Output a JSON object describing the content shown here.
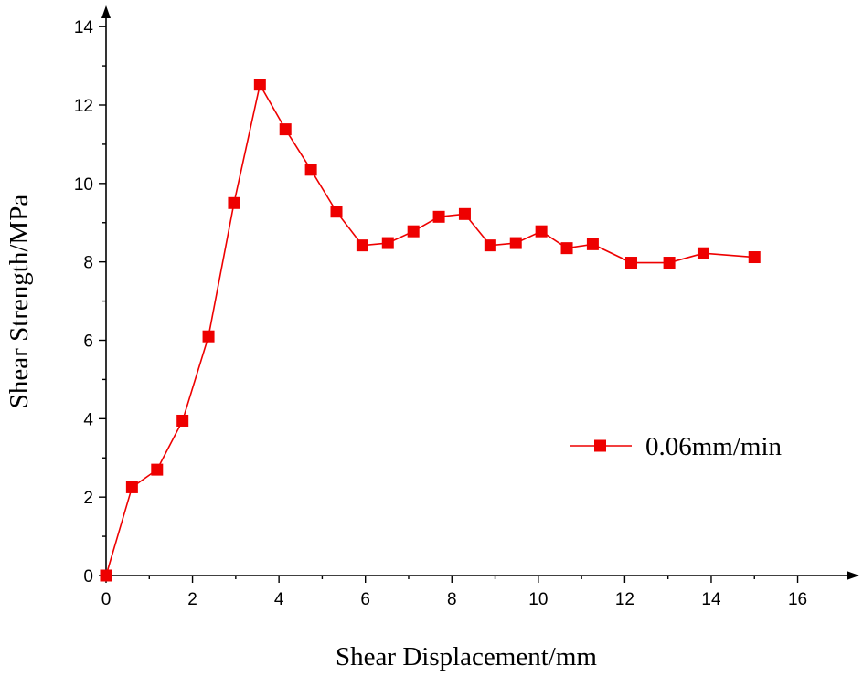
{
  "chart_data": {
    "type": "line",
    "xlabel": "Shear Displacement/mm",
    "ylabel": "Shear Strength/MPa",
    "xlim": [
      0,
      17.3
    ],
    "ylim": [
      0,
      14.4
    ],
    "xticks": [
      0,
      2,
      4,
      6,
      8,
      10,
      12,
      14,
      16
    ],
    "xtick_labels": [
      "0",
      "2",
      "4",
      "6",
      "8",
      "10",
      "12",
      "14",
      "16"
    ],
    "yticks": [
      0,
      2,
      4,
      6,
      8,
      10,
      12,
      14
    ],
    "ytick_labels": [
      "0",
      "2",
      "4",
      "6",
      "8",
      "10",
      "12",
      "14"
    ],
    "grid": false,
    "legend_position": "right",
    "series": [
      {
        "name": "0.06mm/min",
        "color": "#ee0000",
        "marker": "square",
        "x": [
          0,
          0.6,
          1.18,
          1.77,
          2.37,
          2.96,
          3.56,
          4.15,
          4.74,
          5.33,
          5.93,
          6.52,
          7.11,
          7.7,
          8.3,
          8.89,
          9.48,
          10.07,
          10.66,
          11.26,
          12.15,
          13.03,
          13.82,
          15.0
        ],
        "y": [
          0,
          2.25,
          2.7,
          3.95,
          6.1,
          9.5,
          12.52,
          11.38,
          10.35,
          9.28,
          8.42,
          8.48,
          8.78,
          9.15,
          9.22,
          8.42,
          8.48,
          8.78,
          8.35,
          8.45,
          7.98,
          7.98,
          8.22,
          8.12
        ]
      }
    ]
  }
}
